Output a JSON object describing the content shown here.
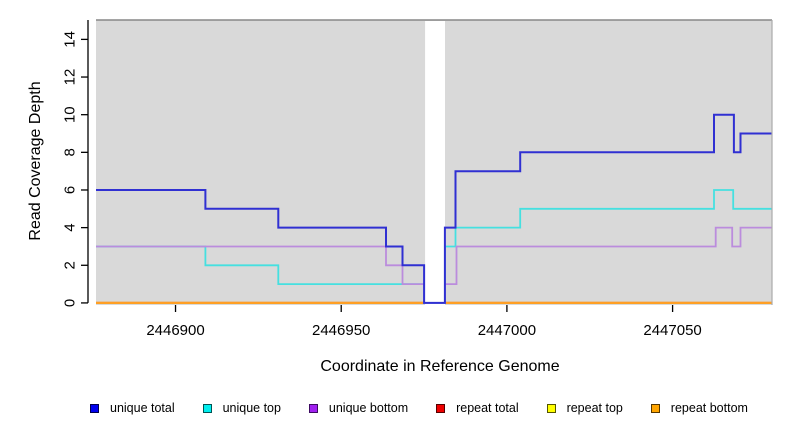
{
  "figure": {
    "bg_color": "#ffffff",
    "panel_bg_color": "#d9d9d9",
    "panel_top_border_color": "#878787",
    "panel_right_border_color": "#ababab",
    "axis_color": "#000000",
    "text_color": "#000000"
  },
  "chart_data": {
    "type": "line",
    "subtype": "step-coverage-plot",
    "title": "",
    "xlabel": "Coordinate in Reference Genome",
    "ylabel": "Read Coverage Depth",
    "xlim": [
      2446876,
      2447080
    ],
    "ylim": [
      -0.11,
      15.03
    ],
    "x_ticks": [
      2446900,
      2446950,
      2447000,
      2447050
    ],
    "y_ticks": [
      0,
      2,
      4,
      6,
      8,
      10,
      12,
      14
    ],
    "grid": false,
    "legend_position": "bottom",
    "gap_band": {
      "x_start": 2446975.3,
      "x_end": 2446981.3,
      "color": "#ffffff"
    },
    "legend": [
      {
        "label": "unique total",
        "fill": "#0000ee",
        "border": "#00004d"
      },
      {
        "label": "unique top",
        "fill": "#00eeee",
        "border": "#005555"
      },
      {
        "label": "unique bottom",
        "fill": "#a020f0",
        "border": "#3d0a62"
      },
      {
        "label": "repeat total",
        "fill": "#ee0000",
        "border": "#550000"
      },
      {
        "label": "repeat top",
        "fill": "#ffff00",
        "border": "#555500"
      },
      {
        "label": "repeat bottom",
        "fill": "#ffa500",
        "border": "#553700"
      }
    ],
    "series": [
      {
        "name": "repeat total",
        "color": "#e60000",
        "width": 2,
        "points": [
          [
            2446876,
            0
          ],
          [
            2447080,
            0
          ]
        ]
      },
      {
        "name": "repeat top",
        "color": "#ffee00",
        "width": 2,
        "points": [
          [
            2446876,
            0
          ],
          [
            2447080,
            0
          ]
        ]
      },
      {
        "name": "repeat bottom",
        "color": "#ff9d26",
        "width": 2,
        "points": [
          [
            2446876,
            0
          ],
          [
            2447080,
            0
          ]
        ]
      },
      {
        "name": "unique top",
        "color": "#45e0e0",
        "width": 1.8,
        "points": [
          [
            2446876,
            3
          ],
          [
            2446909,
            3
          ],
          [
            2446909,
            2
          ],
          [
            2446931,
            2
          ],
          [
            2446931,
            1
          ],
          [
            2446975,
            1
          ],
          [
            2446975,
            0
          ],
          [
            2446981.3,
            0
          ],
          [
            2446981.3,
            3
          ],
          [
            2446984.5,
            3
          ],
          [
            2446984.5,
            4
          ],
          [
            2447004,
            4
          ],
          [
            2447004,
            5
          ],
          [
            2447062.5,
            5
          ],
          [
            2447062.5,
            6
          ],
          [
            2447068.3,
            6
          ],
          [
            2447068.3,
            5
          ],
          [
            2447080,
            5
          ]
        ]
      },
      {
        "name": "unique bottom",
        "color": "#bb8cdd",
        "width": 1.8,
        "points": [
          [
            2446876,
            3
          ],
          [
            2446963.5,
            3
          ],
          [
            2446963.5,
            2
          ],
          [
            2446968.5,
            2
          ],
          [
            2446968.5,
            1
          ],
          [
            2446975,
            1
          ],
          [
            2446975,
            0
          ],
          [
            2446981.3,
            0
          ],
          [
            2446981.3,
            1
          ],
          [
            2446984.8,
            1
          ],
          [
            2446984.8,
            3
          ],
          [
            2447063,
            3
          ],
          [
            2447063,
            4
          ],
          [
            2447068,
            4
          ],
          [
            2447068,
            3
          ],
          [
            2447070.5,
            3
          ],
          [
            2447070.5,
            4
          ],
          [
            2447080,
            4
          ]
        ]
      },
      {
        "name": "unique total",
        "color": "#3030d2",
        "width": 2,
        "points": [
          [
            2446876,
            6
          ],
          [
            2446909,
            6
          ],
          [
            2446909,
            5
          ],
          [
            2446931,
            5
          ],
          [
            2446931,
            4
          ],
          [
            2446963.5,
            4
          ],
          [
            2446963.5,
            3
          ],
          [
            2446968.5,
            3
          ],
          [
            2446968.5,
            2
          ],
          [
            2446975,
            2
          ],
          [
            2446975,
            0
          ],
          [
            2446981.3,
            0
          ],
          [
            2446981.3,
            4
          ],
          [
            2446984.5,
            4
          ],
          [
            2446984.5,
            7
          ],
          [
            2447004,
            7
          ],
          [
            2447004,
            8
          ],
          [
            2447062.5,
            8
          ],
          [
            2447062.5,
            10
          ],
          [
            2447068.5,
            10
          ],
          [
            2447068.5,
            8
          ],
          [
            2447070.5,
            8
          ],
          [
            2447070.5,
            9
          ],
          [
            2447080,
            9
          ]
        ]
      }
    ]
  }
}
